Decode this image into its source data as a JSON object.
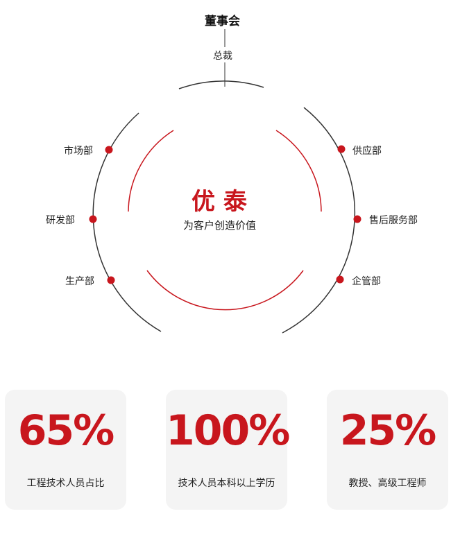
{
  "board": "董事会",
  "president": "总裁",
  "center": {
    "title": "优 泰",
    "slogan": "为客户创造价值"
  },
  "departments_left": [
    "市场部",
    "研发部",
    "生产部"
  ],
  "departments_right": [
    "供应部",
    "售后服务部",
    "企管部"
  ],
  "colors": {
    "accent": "#c8161d",
    "line": "#333333",
    "card_bg": "#f4f4f4"
  },
  "stats": [
    {
      "value": "65%",
      "label": "工程技术人员占比"
    },
    {
      "value": "100%",
      "label": "技术人员本科以上学历"
    },
    {
      "value": "25%",
      "label": "教授、高级工程师"
    }
  ]
}
